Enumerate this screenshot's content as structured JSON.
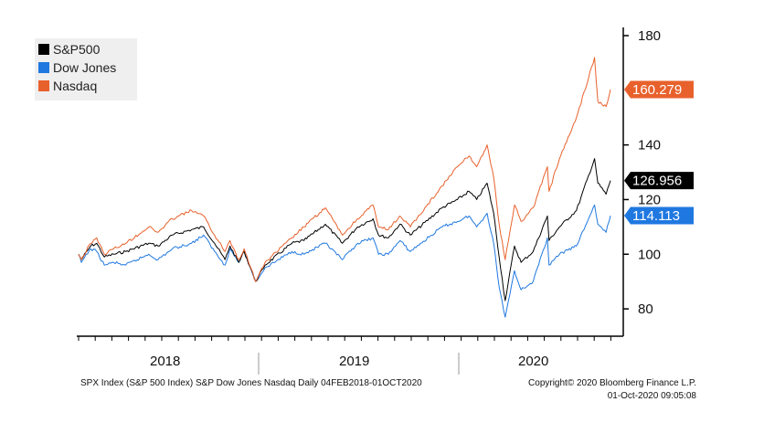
{
  "chart_data": {
    "type": "line",
    "title": "",
    "xlabel": "",
    "ylabel": "",
    "x_range": [
      "2018-02-04",
      "2020-10-01"
    ],
    "ylim": [
      70,
      183
    ],
    "yticks": [
      80,
      100,
      120,
      140,
      180
    ],
    "year_labels": [
      "2018",
      "2019",
      "2020"
    ],
    "grid": false,
    "legend_position": "top-left",
    "series": [
      {
        "name": "S&P500",
        "color": "#000000",
        "last_label": "126.956",
        "points": [
          [
            "2018-02-04",
            100
          ],
          [
            "2018-02-09",
            98
          ],
          [
            "2018-02-26",
            103
          ],
          [
            "2018-03-09",
            104
          ],
          [
            "2018-03-23",
            99
          ],
          [
            "2018-04-09",
            100
          ],
          [
            "2018-05-01",
            101
          ],
          [
            "2018-06-12",
            104
          ],
          [
            "2018-06-29",
            103
          ],
          [
            "2018-07-25",
            107
          ],
          [
            "2018-08-29",
            109
          ],
          [
            "2018-09-20",
            110
          ],
          [
            "2018-10-10",
            104
          ],
          [
            "2018-10-29",
            98
          ],
          [
            "2018-11-07",
            103
          ],
          [
            "2018-11-23",
            97
          ],
          [
            "2018-12-03",
            101
          ],
          [
            "2018-12-24",
            90
          ],
          [
            "2019-01-10",
            96
          ],
          [
            "2019-02-28",
            104
          ],
          [
            "2019-03-22",
            105
          ],
          [
            "2019-04-30",
            111
          ],
          [
            "2019-05-31",
            104
          ],
          [
            "2019-06-28",
            110
          ],
          [
            "2019-07-26",
            113
          ],
          [
            "2019-08-05",
            107
          ],
          [
            "2019-08-23",
            106
          ],
          [
            "2019-09-13",
            111
          ],
          [
            "2019-10-02",
            107
          ],
          [
            "2019-11-29",
            117
          ],
          [
            "2019-12-27",
            120
          ],
          [
            "2020-01-17",
            123
          ],
          [
            "2020-01-31",
            120
          ],
          [
            "2020-02-19",
            126
          ],
          [
            "2020-03-02",
            115
          ],
          [
            "2020-03-12",
            99
          ],
          [
            "2020-03-23",
            83
          ],
          [
            "2020-04-09",
            103
          ],
          [
            "2020-04-21",
            97
          ],
          [
            "2020-05-13",
            101
          ],
          [
            "2020-06-08",
            114
          ],
          [
            "2020-06-11",
            105
          ],
          [
            "2020-06-30",
            110
          ],
          [
            "2020-07-31",
            116
          ],
          [
            "2020-09-02",
            135
          ],
          [
            "2020-09-08",
            126
          ],
          [
            "2020-09-23",
            122
          ],
          [
            "2020-10-01",
            126.956
          ]
        ]
      },
      {
        "name": "Dow Jones",
        "color": "#1f78e0",
        "last_label": "114.113",
        "points": [
          [
            "2018-02-04",
            100
          ],
          [
            "2018-02-09",
            97
          ],
          [
            "2018-02-26",
            102
          ],
          [
            "2018-03-09",
            101
          ],
          [
            "2018-03-23",
            96
          ],
          [
            "2018-04-09",
            97
          ],
          [
            "2018-05-01",
            96
          ],
          [
            "2018-06-12",
            100
          ],
          [
            "2018-06-29",
            98
          ],
          [
            "2018-07-25",
            102
          ],
          [
            "2018-08-29",
            104
          ],
          [
            "2018-09-20",
            107
          ],
          [
            "2018-10-10",
            101
          ],
          [
            "2018-10-29",
            96
          ],
          [
            "2018-11-07",
            102
          ],
          [
            "2018-11-23",
            97
          ],
          [
            "2018-12-03",
            101
          ],
          [
            "2018-12-24",
            90
          ],
          [
            "2019-01-10",
            95
          ],
          [
            "2019-02-28",
            101
          ],
          [
            "2019-03-22",
            100
          ],
          [
            "2019-04-30",
            104
          ],
          [
            "2019-05-31",
            98
          ],
          [
            "2019-06-28",
            104
          ],
          [
            "2019-07-26",
            106
          ],
          [
            "2019-08-05",
            100
          ],
          [
            "2019-08-23",
            100
          ],
          [
            "2019-09-13",
            105
          ],
          [
            "2019-10-02",
            101
          ],
          [
            "2019-11-29",
            110
          ],
          [
            "2019-12-27",
            112
          ],
          [
            "2020-01-17",
            114
          ],
          [
            "2020-01-31",
            110
          ],
          [
            "2020-02-19",
            115
          ],
          [
            "2020-03-02",
            104
          ],
          [
            "2020-03-12",
            88
          ],
          [
            "2020-03-23",
            77
          ],
          [
            "2020-04-09",
            94
          ],
          [
            "2020-04-21",
            87
          ],
          [
            "2020-05-13",
            90
          ],
          [
            "2020-06-08",
            106
          ],
          [
            "2020-06-11",
            96
          ],
          [
            "2020-06-30",
            100
          ],
          [
            "2020-07-31",
            103
          ],
          [
            "2020-09-02",
            118
          ],
          [
            "2020-09-08",
            111
          ],
          [
            "2020-09-23",
            108
          ],
          [
            "2020-10-01",
            114.113
          ]
        ]
      },
      {
        "name": "Nasdaq",
        "color": "#e8612c",
        "last_label": "160.279",
        "points": [
          [
            "2018-02-04",
            100
          ],
          [
            "2018-02-09",
            98
          ],
          [
            "2018-02-26",
            104
          ],
          [
            "2018-03-09",
            106
          ],
          [
            "2018-03-23",
            100
          ],
          [
            "2018-04-09",
            102
          ],
          [
            "2018-05-01",
            104
          ],
          [
            "2018-06-12",
            110
          ],
          [
            "2018-06-29",
            108
          ],
          [
            "2018-07-25",
            113
          ],
          [
            "2018-08-29",
            116
          ],
          [
            "2018-09-20",
            114
          ],
          [
            "2018-10-10",
            107
          ],
          [
            "2018-10-29",
            101
          ],
          [
            "2018-11-07",
            105
          ],
          [
            "2018-11-23",
            98
          ],
          [
            "2018-12-03",
            102
          ],
          [
            "2018-12-24",
            90
          ],
          [
            "2019-01-10",
            97
          ],
          [
            "2019-02-28",
            106
          ],
          [
            "2019-03-22",
            110
          ],
          [
            "2019-04-30",
            117
          ],
          [
            "2019-05-31",
            107
          ],
          [
            "2019-06-28",
            113
          ],
          [
            "2019-07-26",
            118
          ],
          [
            "2019-08-05",
            110
          ],
          [
            "2019-08-23",
            109
          ],
          [
            "2019-09-13",
            114
          ],
          [
            "2019-10-02",
            110
          ],
          [
            "2019-11-29",
            125
          ],
          [
            "2019-12-27",
            132
          ],
          [
            "2020-01-17",
            136
          ],
          [
            "2020-01-31",
            132
          ],
          [
            "2020-02-19",
            140
          ],
          [
            "2020-03-02",
            128
          ],
          [
            "2020-03-12",
            111
          ],
          [
            "2020-03-23",
            98
          ],
          [
            "2020-04-09",
            118
          ],
          [
            "2020-04-21",
            112
          ],
          [
            "2020-05-13",
            117
          ],
          [
            "2020-06-08",
            132
          ],
          [
            "2020-06-11",
            123
          ],
          [
            "2020-06-30",
            135
          ],
          [
            "2020-07-31",
            150
          ],
          [
            "2020-09-02",
            172
          ],
          [
            "2020-09-08",
            156
          ],
          [
            "2020-09-23",
            154
          ],
          [
            "2020-10-01",
            160.279
          ]
        ]
      }
    ]
  },
  "footer": {
    "left": "SPX Index (S&P 500 Index) S&P Dow Jones Nasdaq  Daily 04FEB2018-01OCT2020",
    "copyright": "Copyright© 2020 Bloomberg Finance L.P.",
    "timestamp": "01-Oct-2020 09:05:08"
  }
}
